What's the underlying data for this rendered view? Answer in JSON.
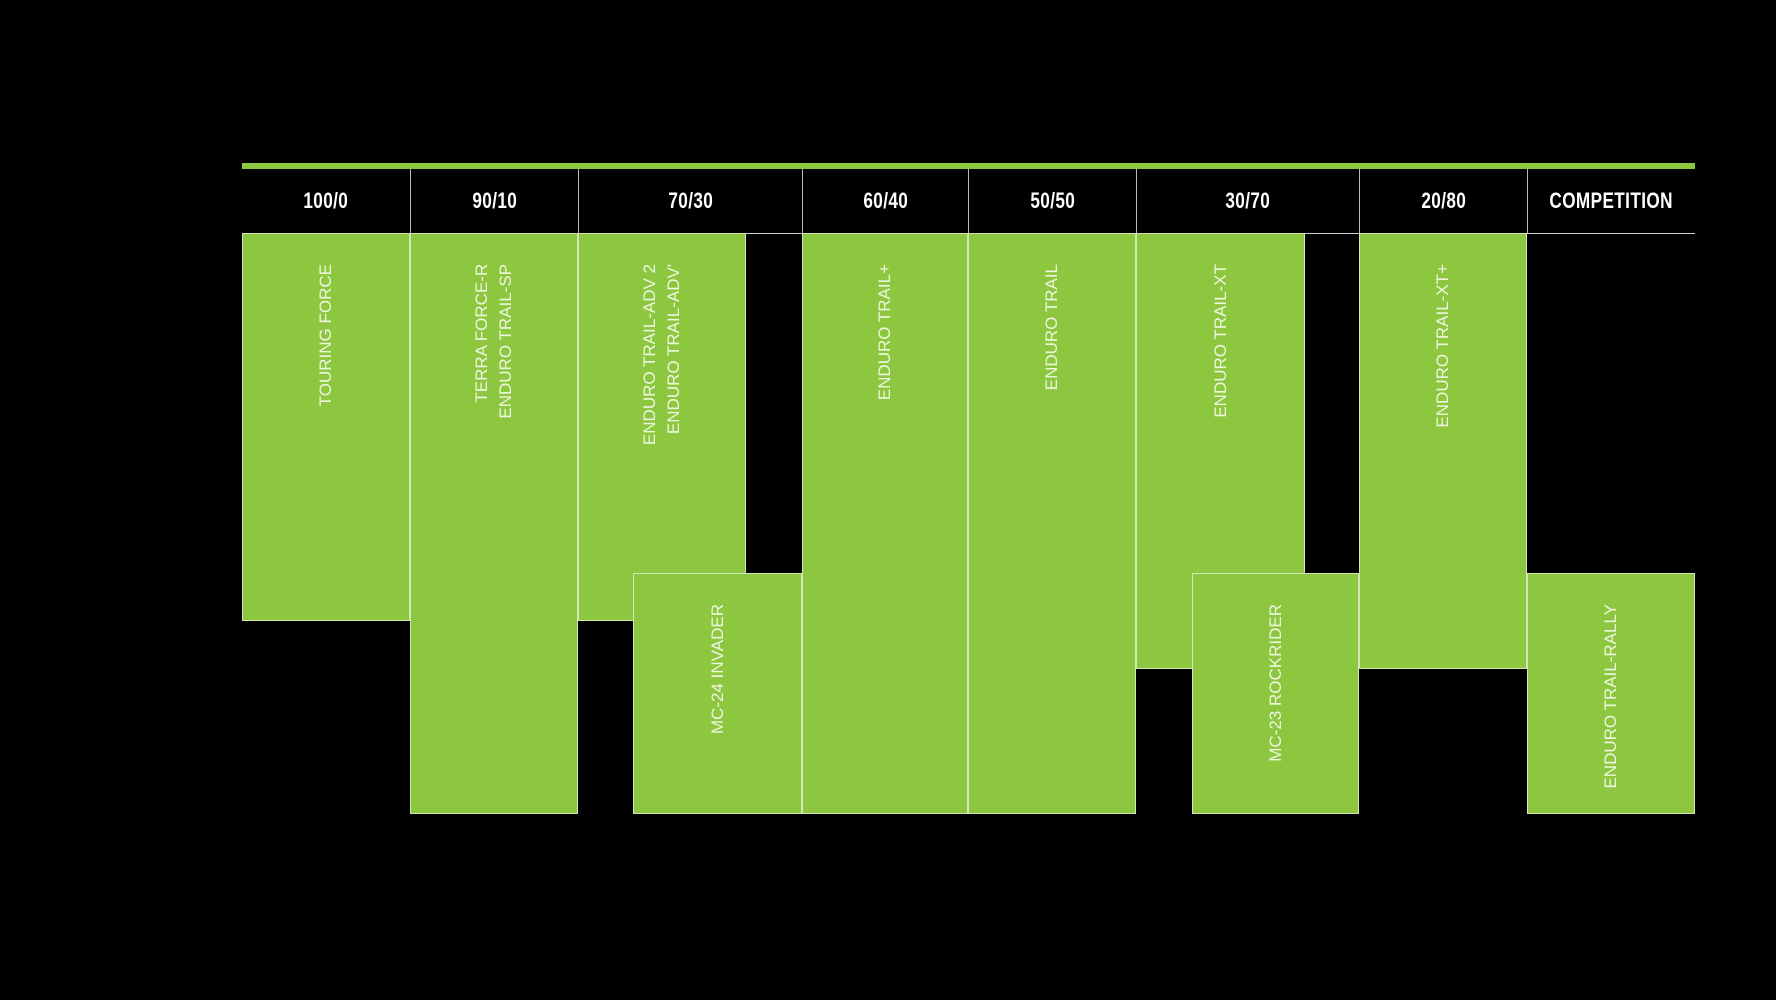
{
  "colors": {
    "accent": "#8dc63f",
    "background": "#000000"
  },
  "headers": [
    "100/0",
    "90/10",
    "70/30",
    "60/40",
    "50/50",
    "30/70",
    "20/80",
    "COMPETITION"
  ],
  "products": [
    {
      "label": "TOURING FORCE"
    },
    {
      "label": "TERRA FORCE-R\nENDURO TRAIL-SP"
    },
    {
      "label": "ENDURO TRAIL-ADV 2\nENDURO TRAIL-ADV'"
    },
    {
      "label": "MC-24 INVADER"
    },
    {
      "label": "ENDURO TRAIL+"
    },
    {
      "label": "ENDURO TRAIL"
    },
    {
      "label": "ENDURO TRAIL-XT"
    },
    {
      "label": "MC-23 ROCKRIDER"
    },
    {
      "label": "ENDURO TRAIL-XT+"
    },
    {
      "label": "ENDURO TRAIL-RALLY"
    }
  ]
}
